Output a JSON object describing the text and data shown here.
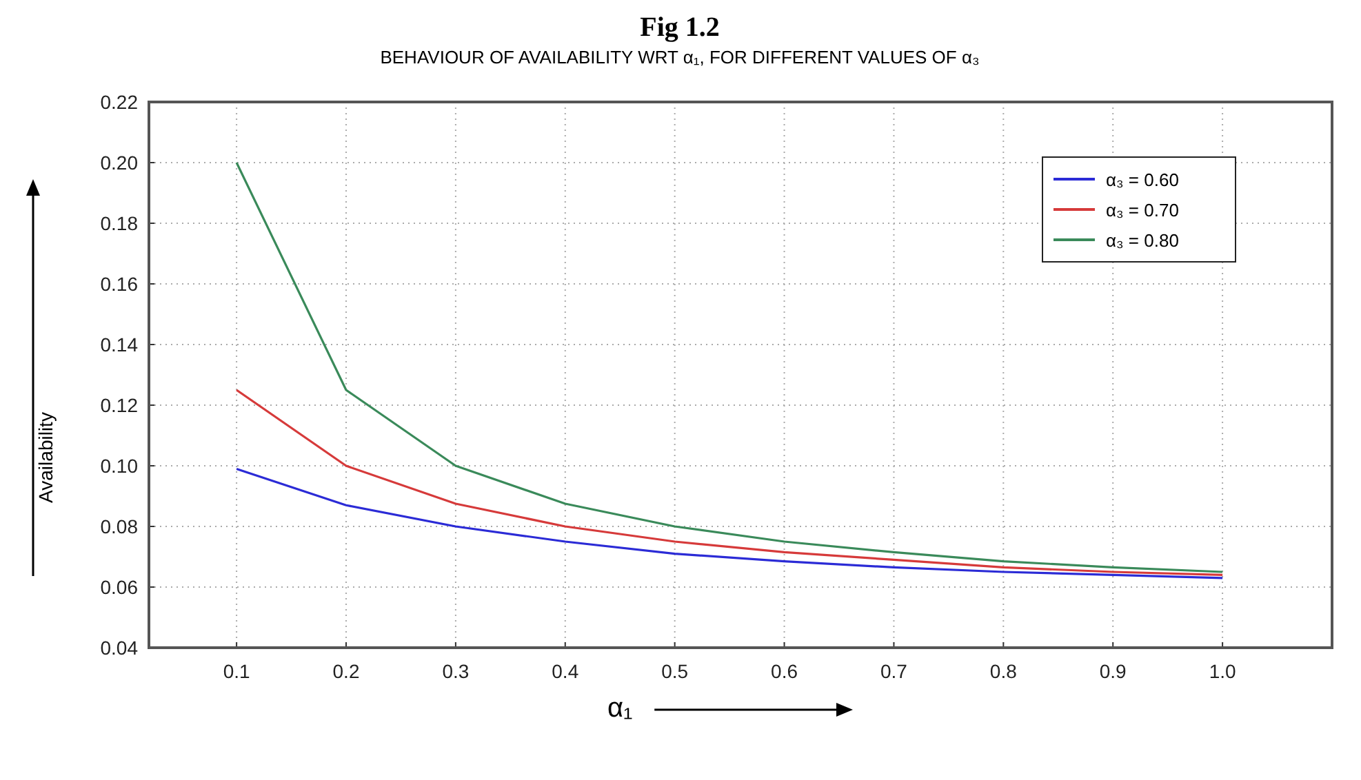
{
  "chart_data": {
    "type": "line",
    "title": "Fig 1.2",
    "subtitle": "BEHAVIOUR OF AVAILABILITY WRT α₁, FOR DIFFERENT VALUES OF α₃",
    "xlabel": "α₁",
    "ylabel": "Availability",
    "x": [
      0.1,
      0.2,
      0.3,
      0.4,
      0.5,
      0.6,
      0.7,
      0.8,
      0.9,
      1.0
    ],
    "series": [
      {
        "name": "α₃ = 0.60",
        "color": "#2b2bd6",
        "values": [
          0.099,
          0.087,
          0.08,
          0.075,
          0.071,
          0.0685,
          0.0665,
          0.065,
          0.064,
          0.063
        ]
      },
      {
        "name": "α₃ = 0.70",
        "color": "#d63a3a",
        "values": [
          0.125,
          0.1,
          0.0875,
          0.08,
          0.075,
          0.0715,
          0.069,
          0.0665,
          0.065,
          0.064
        ]
      },
      {
        "name": "α₃ = 0.80",
        "color": "#3a8a5a",
        "values": [
          0.2,
          0.125,
          0.1,
          0.0875,
          0.08,
          0.075,
          0.0715,
          0.0685,
          0.0665,
          0.065
        ]
      }
    ],
    "xlim": [
      0.02,
      1.1
    ],
    "xticks": [
      {
        "value": 0.1,
        "label": "0.1"
      },
      {
        "value": 0.2,
        "label": "0.2"
      },
      {
        "value": 0.3,
        "label": "0.3"
      },
      {
        "value": 0.4,
        "label": "0.4"
      },
      {
        "value": 0.5,
        "label": "0.5"
      },
      {
        "value": 0.6,
        "label": "0.6"
      },
      {
        "value": 0.7,
        "label": "0.7"
      },
      {
        "value": 0.8,
        "label": "0.8"
      },
      {
        "value": 0.9,
        "label": "0.9"
      },
      {
        "value": 1.0,
        "label": "1.0"
      }
    ],
    "ylim": [
      0.04,
      0.22
    ],
    "yticks": [
      {
        "value": 0.04,
        "label": "0.04"
      },
      {
        "value": 0.06,
        "label": "0.06"
      },
      {
        "value": 0.08,
        "label": "0.08"
      },
      {
        "value": 0.1,
        "label": "0.10"
      },
      {
        "value": 0.12,
        "label": "0.12"
      },
      {
        "value": 0.14,
        "label": "0.14"
      },
      {
        "value": 0.16,
        "label": "0.16"
      },
      {
        "value": 0.18,
        "label": "0.18"
      },
      {
        "value": 0.2,
        "label": "0.20"
      },
      {
        "value": 0.22,
        "label": "0.22"
      }
    ],
    "grid": true,
    "legend": "top right",
    "line_style": "solid",
    "marker": "none"
  }
}
